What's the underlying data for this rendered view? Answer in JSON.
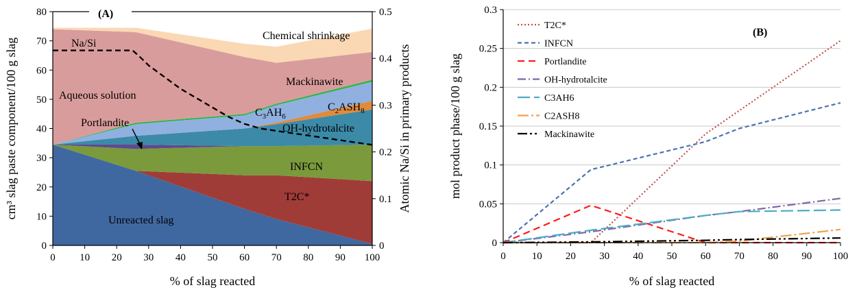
{
  "chart_data": [
    {
      "panel": "(A)",
      "type": "area",
      "xlabel": "% of slag reacted",
      "ylabel": "cm³ slag paste component/100 g slag",
      "ylabel_right": "Atomic Na/Si in primary products",
      "xlim": [
        0,
        100
      ],
      "ylim": [
        0,
        80
      ],
      "ylim_right": [
        0,
        0.5
      ],
      "x_ticks": [
        0,
        10,
        20,
        30,
        40,
        50,
        60,
        70,
        80,
        90,
        100
      ],
      "y_ticks": [
        0,
        10,
        20,
        30,
        40,
        50,
        60,
        70,
        80
      ],
      "y_ticks_right": [
        0,
        0.1,
        0.2,
        0.3,
        0.4,
        0.5
      ],
      "x": [
        0,
        26,
        60,
        70,
        100
      ],
      "layers": [
        {
          "name": "Unreacted slag",
          "color": "#4068a0",
          "values": [
            34.5,
            25.5,
            12.5,
            9.0,
            0.5
          ]
        },
        {
          "name": "T2C*",
          "color": "#a03c38",
          "values": [
            0,
            0,
            11.5,
            15.0,
            21.5
          ]
        },
        {
          "name": "INFCN",
          "color": "#7a9a3c",
          "values": [
            0,
            7.5,
            10.0,
            10.0,
            12.5
          ]
        },
        {
          "name": "Portlandite",
          "color": "#5e4a8c",
          "values": [
            0,
            1.5,
            0,
            0,
            0
          ]
        },
        {
          "name": "OH-hydrotalcite",
          "color": "#3c8aa8",
          "values": [
            0,
            3.0,
            6.0,
            7.5,
            12.0
          ]
        },
        {
          "name": "C2ASH8",
          "color": "#e08a3c",
          "values": [
            0,
            0,
            0,
            0.5,
            3.0
          ]
        },
        {
          "name": "C3AH6",
          "color": "#90b0e0",
          "values": [
            0,
            4.0,
            4.5,
            6.0,
            6.5
          ]
        },
        {
          "name": "Mackinawite",
          "color": "#2fb54a",
          "values": [
            0,
            0.5,
            0.5,
            0.5,
            0.7
          ]
        },
        {
          "name": "Aqueous solution",
          "color": "#d99c9c",
          "values": [
            39.5,
            31.0,
            19.5,
            14.0,
            9.5
          ]
        },
        {
          "name": "Chemical shrinkage",
          "color": "#fad8b4",
          "values": [
            0.5,
            1.5,
            4.5,
            5.5,
            8.0
          ]
        }
      ],
      "na_si_line": {
        "name": "Na/Si",
        "x": [
          0,
          25,
          27,
          30,
          35,
          40,
          45,
          50,
          55,
          60,
          65,
          70,
          80,
          90,
          100
        ],
        "y": [
          0.417,
          0.417,
          0.405,
          0.385,
          0.36,
          0.335,
          0.315,
          0.295,
          0.275,
          0.26,
          0.25,
          0.245,
          0.235,
          0.225,
          0.215
        ]
      },
      "labels": {
        "unreacted": "Unreacted slag",
        "t2c": "T2C*",
        "infcn": "INFCN",
        "portlandite": "Portlandite",
        "ohht": "OH-hydrotalcite",
        "c3ah6": "C",
        "c3ah6_sub": "3",
        "c3ah6_mid": "AH",
        "c3ah6_sub2": "6",
        "c2ash8": "C",
        "c2ash8_sub": "2",
        "c2ash8_mid": "ASH",
        "c2ash8_sub2": "8",
        "mackinawite": "Mackinawite",
        "aqueous": "Aqueous solution",
        "shrinkage": "Chemical shrinkage",
        "nasi": "Na/Si"
      }
    },
    {
      "panel": "(B)",
      "type": "line",
      "xlabel": "% of slag reacted",
      "ylabel": "mol product phase/100 g slag",
      "xlim": [
        0,
        100
      ],
      "ylim": [
        0,
        0.3
      ],
      "x_ticks": [
        0,
        10,
        20,
        30,
        40,
        50,
        60,
        70,
        80,
        90,
        100
      ],
      "y_ticks": [
        0,
        0.05,
        0.1,
        0.15,
        0.2,
        0.25,
        0.3
      ],
      "y_tick_labels": [
        "0",
        "0.05",
        "0.1",
        "0.15",
        "0.2",
        "0.25",
        "0.3"
      ],
      "grid": "horizontal",
      "legend_position": "top-left",
      "series": [
        {
          "name": "T2C*",
          "color": "#c0504d",
          "dash": "2,3",
          "x": [
            0,
            26,
            60,
            100
          ],
          "y": [
            0,
            0,
            0.14,
            0.26
          ]
        },
        {
          "name": "INFCN",
          "color": "#4a72b0",
          "dash": "6,4",
          "x": [
            0,
            26,
            60,
            70,
            100
          ],
          "y": [
            0,
            0.094,
            0.13,
            0.147,
            0.18
          ]
        },
        {
          "name": "Portlandite",
          "color": "#ff1a1a",
          "dash": "10,6",
          "x": [
            0,
            26,
            60,
            100
          ],
          "y": [
            0,
            0.048,
            0,
            0
          ]
        },
        {
          "name": "OH-hydrotalcite",
          "color": "#8064a2",
          "dash": "12,4,2,4",
          "x": [
            0,
            26,
            60,
            70,
            100
          ],
          "y": [
            0,
            0.014,
            0.035,
            0.04,
            0.057
          ]
        },
        {
          "name": "C3AH6",
          "color": "#4bacc6",
          "dash": "18,6",
          "x": [
            0,
            26,
            60,
            70,
            100
          ],
          "y": [
            0,
            0.016,
            0.035,
            0.04,
            0.042
          ]
        },
        {
          "name": "C2ASH8",
          "color": "#f0a050",
          "dash": "16,4,3,4",
          "x": [
            0,
            26,
            60,
            70,
            100
          ],
          "y": [
            0,
            0,
            0,
            0.002,
            0.017
          ]
        },
        {
          "name": "Mackinawite",
          "color": "#000000",
          "dash": "14,4,3,4,3,4",
          "x": [
            0,
            26,
            60,
            70,
            100
          ],
          "y": [
            0,
            0.001,
            0.003,
            0.004,
            0.006
          ]
        }
      ],
      "panel_label": "(B)"
    }
  ]
}
